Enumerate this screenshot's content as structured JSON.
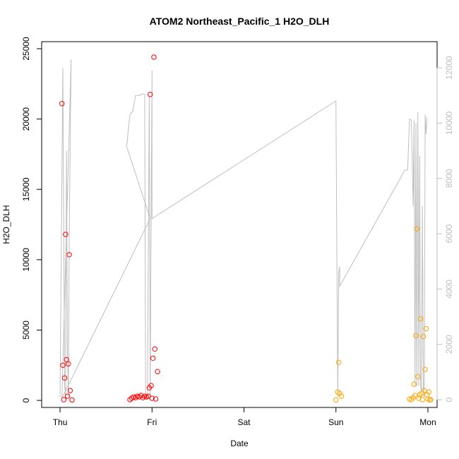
{
  "chart_data": {
    "type": "scatter",
    "title": "ATOM2 Northeast_Pacific_1 H2O_DLH",
    "xlabel": "Date",
    "ylabel": "H2O_DLH",
    "x_axis": {
      "unit": "days (Thu 00:00 = 0)",
      "range": [
        -0.2,
        4.1
      ],
      "tick_values": [
        0,
        1,
        2,
        3,
        4
      ],
      "tick_labels": [
        "Thu",
        "Fri",
        "Sat",
        "Sun",
        "Mon"
      ]
    },
    "y_left": {
      "range": [
        -500,
        25500
      ],
      "ticks": [
        0,
        5000,
        10000,
        15000,
        20000,
        25000
      ]
    },
    "y_right": {
      "range": [
        0,
        12000
      ],
      "ticks": [
        0,
        2000,
        4000,
        6000,
        8000,
        10000,
        12000
      ],
      "color": "#bebebe"
    },
    "colors": {
      "red_points": "#ff0000",
      "orange_points": "#ffa500",
      "gray_line": "#bebebe"
    },
    "series": [
      {
        "color": "red",
        "axis": "left",
        "points": [
          [
            0.02,
            21100
          ],
          [
            0.03,
            2500
          ],
          [
            0.04,
            50
          ],
          [
            0.05,
            1600
          ],
          [
            0.06,
            11800
          ],
          [
            0.07,
            2900
          ],
          [
            0.08,
            300
          ],
          [
            0.09,
            2600
          ],
          [
            0.1,
            10350
          ],
          [
            0.11,
            700
          ],
          [
            0.13,
            30
          ],
          [
            0.76,
            50
          ],
          [
            0.78,
            150
          ],
          [
            0.8,
            250
          ],
          [
            0.82,
            200
          ],
          [
            0.84,
            300
          ],
          [
            0.86,
            250
          ],
          [
            0.88,
            350
          ],
          [
            0.9,
            200
          ],
          [
            0.92,
            300
          ],
          [
            0.94,
            250
          ],
          [
            0.96,
            300
          ],
          [
            0.97,
            900
          ],
          [
            0.98,
            21750
          ],
          [
            0.99,
            1050
          ],
          [
            1.0,
            150
          ],
          [
            1.01,
            3000
          ],
          [
            1.02,
            24400
          ],
          [
            1.03,
            3650
          ],
          [
            1.04,
            100
          ],
          [
            1.06,
            2050
          ]
        ]
      },
      {
        "color": "orange",
        "axis": "left",
        "points": [
          [
            3.0,
            30
          ],
          [
            3.02,
            600
          ],
          [
            3.03,
            2700
          ],
          [
            3.04,
            500
          ],
          [
            3.06,
            300
          ],
          [
            3.8,
            100
          ],
          [
            3.82,
            50
          ],
          [
            3.84,
            200
          ],
          [
            3.85,
            1150
          ],
          [
            3.86,
            350
          ],
          [
            3.87,
            4600
          ],
          [
            3.88,
            12200
          ],
          [
            3.89,
            1700
          ],
          [
            3.9,
            150
          ],
          [
            3.91,
            400
          ],
          [
            3.92,
            5800
          ],
          [
            3.93,
            500
          ],
          [
            3.94,
            50
          ],
          [
            3.95,
            4550
          ],
          [
            3.96,
            700
          ],
          [
            3.97,
            2200
          ],
          [
            3.98,
            5100
          ],
          [
            3.99,
            400
          ],
          [
            4.0,
            100
          ],
          [
            4.01,
            600
          ],
          [
            4.02,
            30
          ],
          [
            4.03,
            50
          ]
        ]
      },
      {
        "color": "gray",
        "axis": "right",
        "type": "line",
        "points": [
          [
            0.0,
            100
          ],
          [
            0.03,
            12000
          ],
          [
            0.04,
            6000
          ],
          [
            0.05,
            500
          ],
          [
            0.06,
            100
          ],
          [
            0.07,
            9000
          ],
          [
            0.08,
            2000
          ],
          [
            0.09,
            100
          ],
          [
            0.1,
            6000
          ],
          [
            0.12,
            12300
          ],
          [
            0.02,
            50
          ],
          [
            0.98,
            6550
          ],
          [
            0.72,
            9200
          ],
          [
            0.73,
            9300
          ],
          [
            0.74,
            9700
          ],
          [
            0.76,
            10300
          ],
          [
            0.78,
            10400
          ],
          [
            0.79,
            10400
          ],
          [
            0.82,
            11000
          ],
          [
            0.85,
            11000
          ],
          [
            0.87,
            11000
          ],
          [
            0.88,
            11050
          ],
          [
            0.9,
            11050
          ],
          [
            0.92,
            11050
          ],
          [
            0.93,
            100
          ],
          [
            0.95,
            100
          ],
          [
            0.97,
            11000
          ],
          [
            0.98,
            100
          ],
          [
            0.99,
            6500
          ],
          [
            1.0,
            11900
          ],
          [
            1.0,
            6550
          ],
          [
            3.0,
            10800
          ],
          [
            3.02,
            100
          ],
          [
            3.03,
            4600
          ],
          [
            3.04,
            4800
          ],
          [
            3.04,
            4100
          ],
          [
            3.75,
            8300
          ],
          [
            3.78,
            8300
          ],
          [
            3.8,
            10150
          ],
          [
            3.82,
            10100
          ],
          [
            3.84,
            7000
          ],
          [
            3.85,
            10100
          ],
          [
            3.86,
            500
          ],
          [
            3.87,
            10000
          ],
          [
            3.88,
            500
          ],
          [
            3.89,
            10400
          ],
          [
            3.9,
            500
          ],
          [
            3.91,
            8800
          ],
          [
            3.92,
            500
          ],
          [
            3.93,
            300
          ],
          [
            3.94,
            7000
          ],
          [
            3.95,
            300
          ],
          [
            3.96,
            100
          ],
          [
            3.97,
            10300
          ],
          [
            3.98,
            9600
          ],
          [
            3.99,
            10200
          ]
        ]
      }
    ],
    "grid": false
  }
}
